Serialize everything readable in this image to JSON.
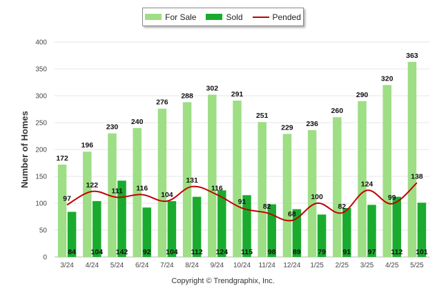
{
  "chart_data": {
    "type": "bar",
    "categories": [
      "3/24",
      "4/24",
      "5/24",
      "6/24",
      "7/24",
      "8/24",
      "9/24",
      "10/24",
      "11/24",
      "12/24",
      "1/25",
      "2/25",
      "3/25",
      "4/25",
      "5/25"
    ],
    "series": [
      {
        "name": "For Sale",
        "kind": "bar",
        "color": "#9ede85",
        "values": [
          172,
          196,
          230,
          240,
          276,
          288,
          302,
          291,
          251,
          229,
          236,
          260,
          290,
          320,
          363
        ]
      },
      {
        "name": "Sold",
        "kind": "bar",
        "color": "#1aab2e",
        "values": [
          84,
          104,
          142,
          92,
          104,
          112,
          124,
          115,
          98,
          89,
          79,
          91,
          97,
          112,
          101
        ]
      },
      {
        "name": "Pended",
        "kind": "line",
        "color": "#c00000",
        "values": [
          97,
          122,
          111,
          116,
          104,
          131,
          116,
          91,
          82,
          68,
          100,
          82,
          124,
          99,
          138
        ]
      }
    ],
    "ylabel": "Number of Homes",
    "xlabel": "",
    "ylim": [
      0,
      400
    ],
    "yticks": [
      0,
      50,
      100,
      150,
      200,
      250,
      300,
      350,
      400
    ],
    "grid": true,
    "legend_position": "top-center"
  },
  "copyright": "Copyright © Trendgraphix, Inc."
}
